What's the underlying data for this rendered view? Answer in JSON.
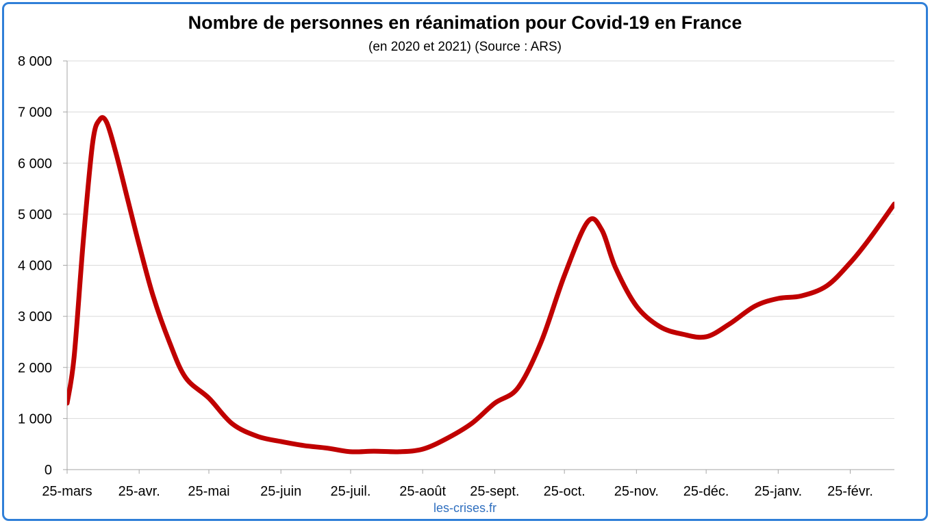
{
  "page": {
    "title": "Nombre de personnes en réanimation pour Covid-19 en France",
    "subtitle": "(en 2020 et 2021) (Source : ARS)",
    "credit": "les-crises.fr"
  },
  "colors": {
    "series": "#c00000",
    "frame": "#2f7fd8",
    "credit": "#2f6fbf",
    "grid": "#d9d9d9",
    "axis": "#a6a6a6"
  },
  "chart_data": {
    "type": "line",
    "title": "Nombre de personnes en réanimation pour Covid-19 en France",
    "subtitle": "(en 2020 et 2021) (Source : ARS)",
    "xlabel": "",
    "ylabel": "",
    "ylim": [
      0,
      8000
    ],
    "grid": true,
    "legend": "none",
    "y_ticks": [
      0,
      1000,
      2000,
      3000,
      4000,
      5000,
      6000,
      7000,
      8000
    ],
    "y_tick_labels": [
      "0",
      "1 000",
      "2 000",
      "3 000",
      "4 000",
      "5 000",
      "6 000",
      "7 000",
      "8 000"
    ],
    "x_ticks": [
      "2020-03-25",
      "2020-04-25",
      "2020-05-25",
      "2020-06-25",
      "2020-07-25",
      "2020-08-25",
      "2020-09-25",
      "2020-10-25",
      "2020-11-25",
      "2020-12-25",
      "2021-01-25",
      "2021-02-25"
    ],
    "x_tick_labels": [
      "25-mars",
      "25-avr.",
      "25-mai",
      "25-juin",
      "25-juil.",
      "25-août",
      "25-sept.",
      "25-oct.",
      "25-nov.",
      "25-déc.",
      "25-janv.",
      "25-févr."
    ],
    "xlim": [
      "2020-03-25",
      "2021-03-16"
    ],
    "series": [
      {
        "x": [
          "2020-03-25",
          "2020-03-28",
          "2020-04-01",
          "2020-04-05",
          "2020-04-08",
          "2020-04-11",
          "2020-04-15",
          "2020-04-20",
          "2020-04-25",
          "2020-05-01",
          "2020-05-08",
          "2020-05-15",
          "2020-05-25",
          "2020-06-04",
          "2020-06-15",
          "2020-06-25",
          "2020-07-05",
          "2020-07-15",
          "2020-07-25",
          "2020-08-04",
          "2020-08-15",
          "2020-08-25",
          "2020-09-04",
          "2020-09-15",
          "2020-09-25",
          "2020-10-05",
          "2020-10-15",
          "2020-10-25",
          "2020-11-04",
          "2020-11-10",
          "2020-11-16",
          "2020-11-25",
          "2020-12-05",
          "2020-12-15",
          "2020-12-25",
          "2021-01-04",
          "2021-01-15",
          "2021-01-25",
          "2021-02-04",
          "2021-02-15",
          "2021-02-25",
          "2021-03-05",
          "2021-03-16"
        ],
        "values": [
          1300,
          2200,
          4500,
          6400,
          6850,
          6800,
          6200,
          5300,
          4400,
          3400,
          2500,
          1800,
          1400,
          900,
          650,
          550,
          470,
          420,
          350,
          360,
          350,
          400,
          600,
          900,
          1300,
          1600,
          2500,
          3800,
          4850,
          4700,
          3950,
          3200,
          2800,
          2650,
          2600,
          2850,
          3200,
          3350,
          3400,
          3600,
          4050,
          4500,
          5200
        ]
      }
    ]
  }
}
